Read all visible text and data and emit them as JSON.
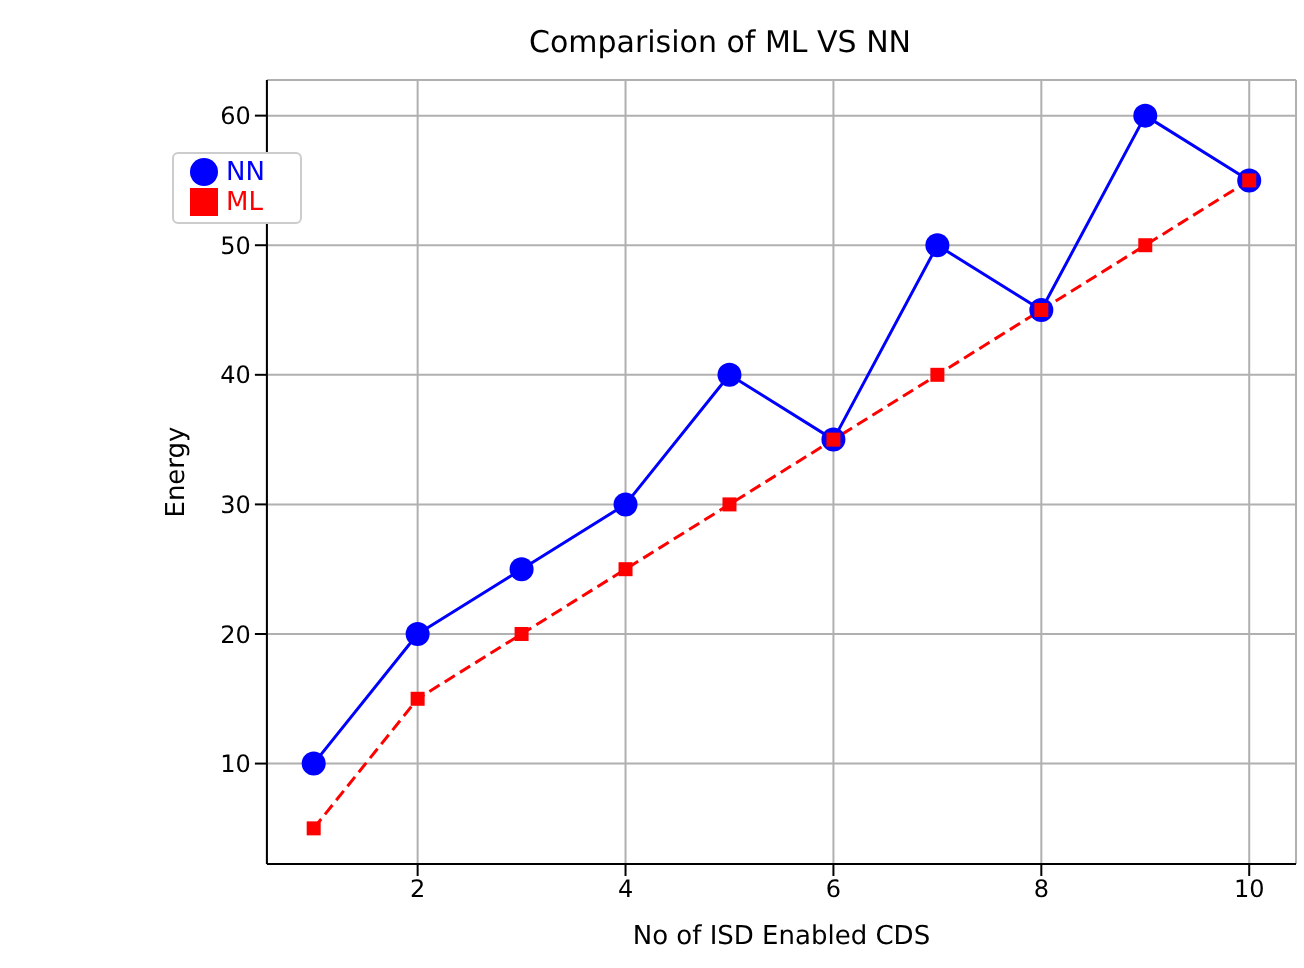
{
  "chart_data": {
    "type": "line",
    "title": "Comparision of ML VS NN",
    "xlabel": "No of ISD Enabled CDS",
    "ylabel": "Energy",
    "x": [
      1,
      2,
      3,
      4,
      5,
      6,
      7,
      8,
      9,
      10
    ],
    "series": [
      {
        "name": "NN",
        "color": "#0000ff",
        "values": [
          10,
          20,
          25,
          30,
          40,
          35,
          50,
          45,
          60,
          55
        ],
        "marker": "circle",
        "line_style": "solid"
      },
      {
        "name": "ML",
        "color": "#ff0000",
        "values": [
          5,
          15,
          20,
          25,
          30,
          35,
          40,
          45,
          50,
          55
        ],
        "marker": "square",
        "line_style": "dashed"
      }
    ],
    "xlim": [
      0.55,
      10.45
    ],
    "xticks": [
      2,
      4,
      6,
      8,
      10
    ],
    "ylim": [
      2.25,
      62.75
    ],
    "yticks": [
      10,
      20,
      30,
      40,
      50,
      60
    ],
    "grid": true,
    "legend": "top left"
  }
}
